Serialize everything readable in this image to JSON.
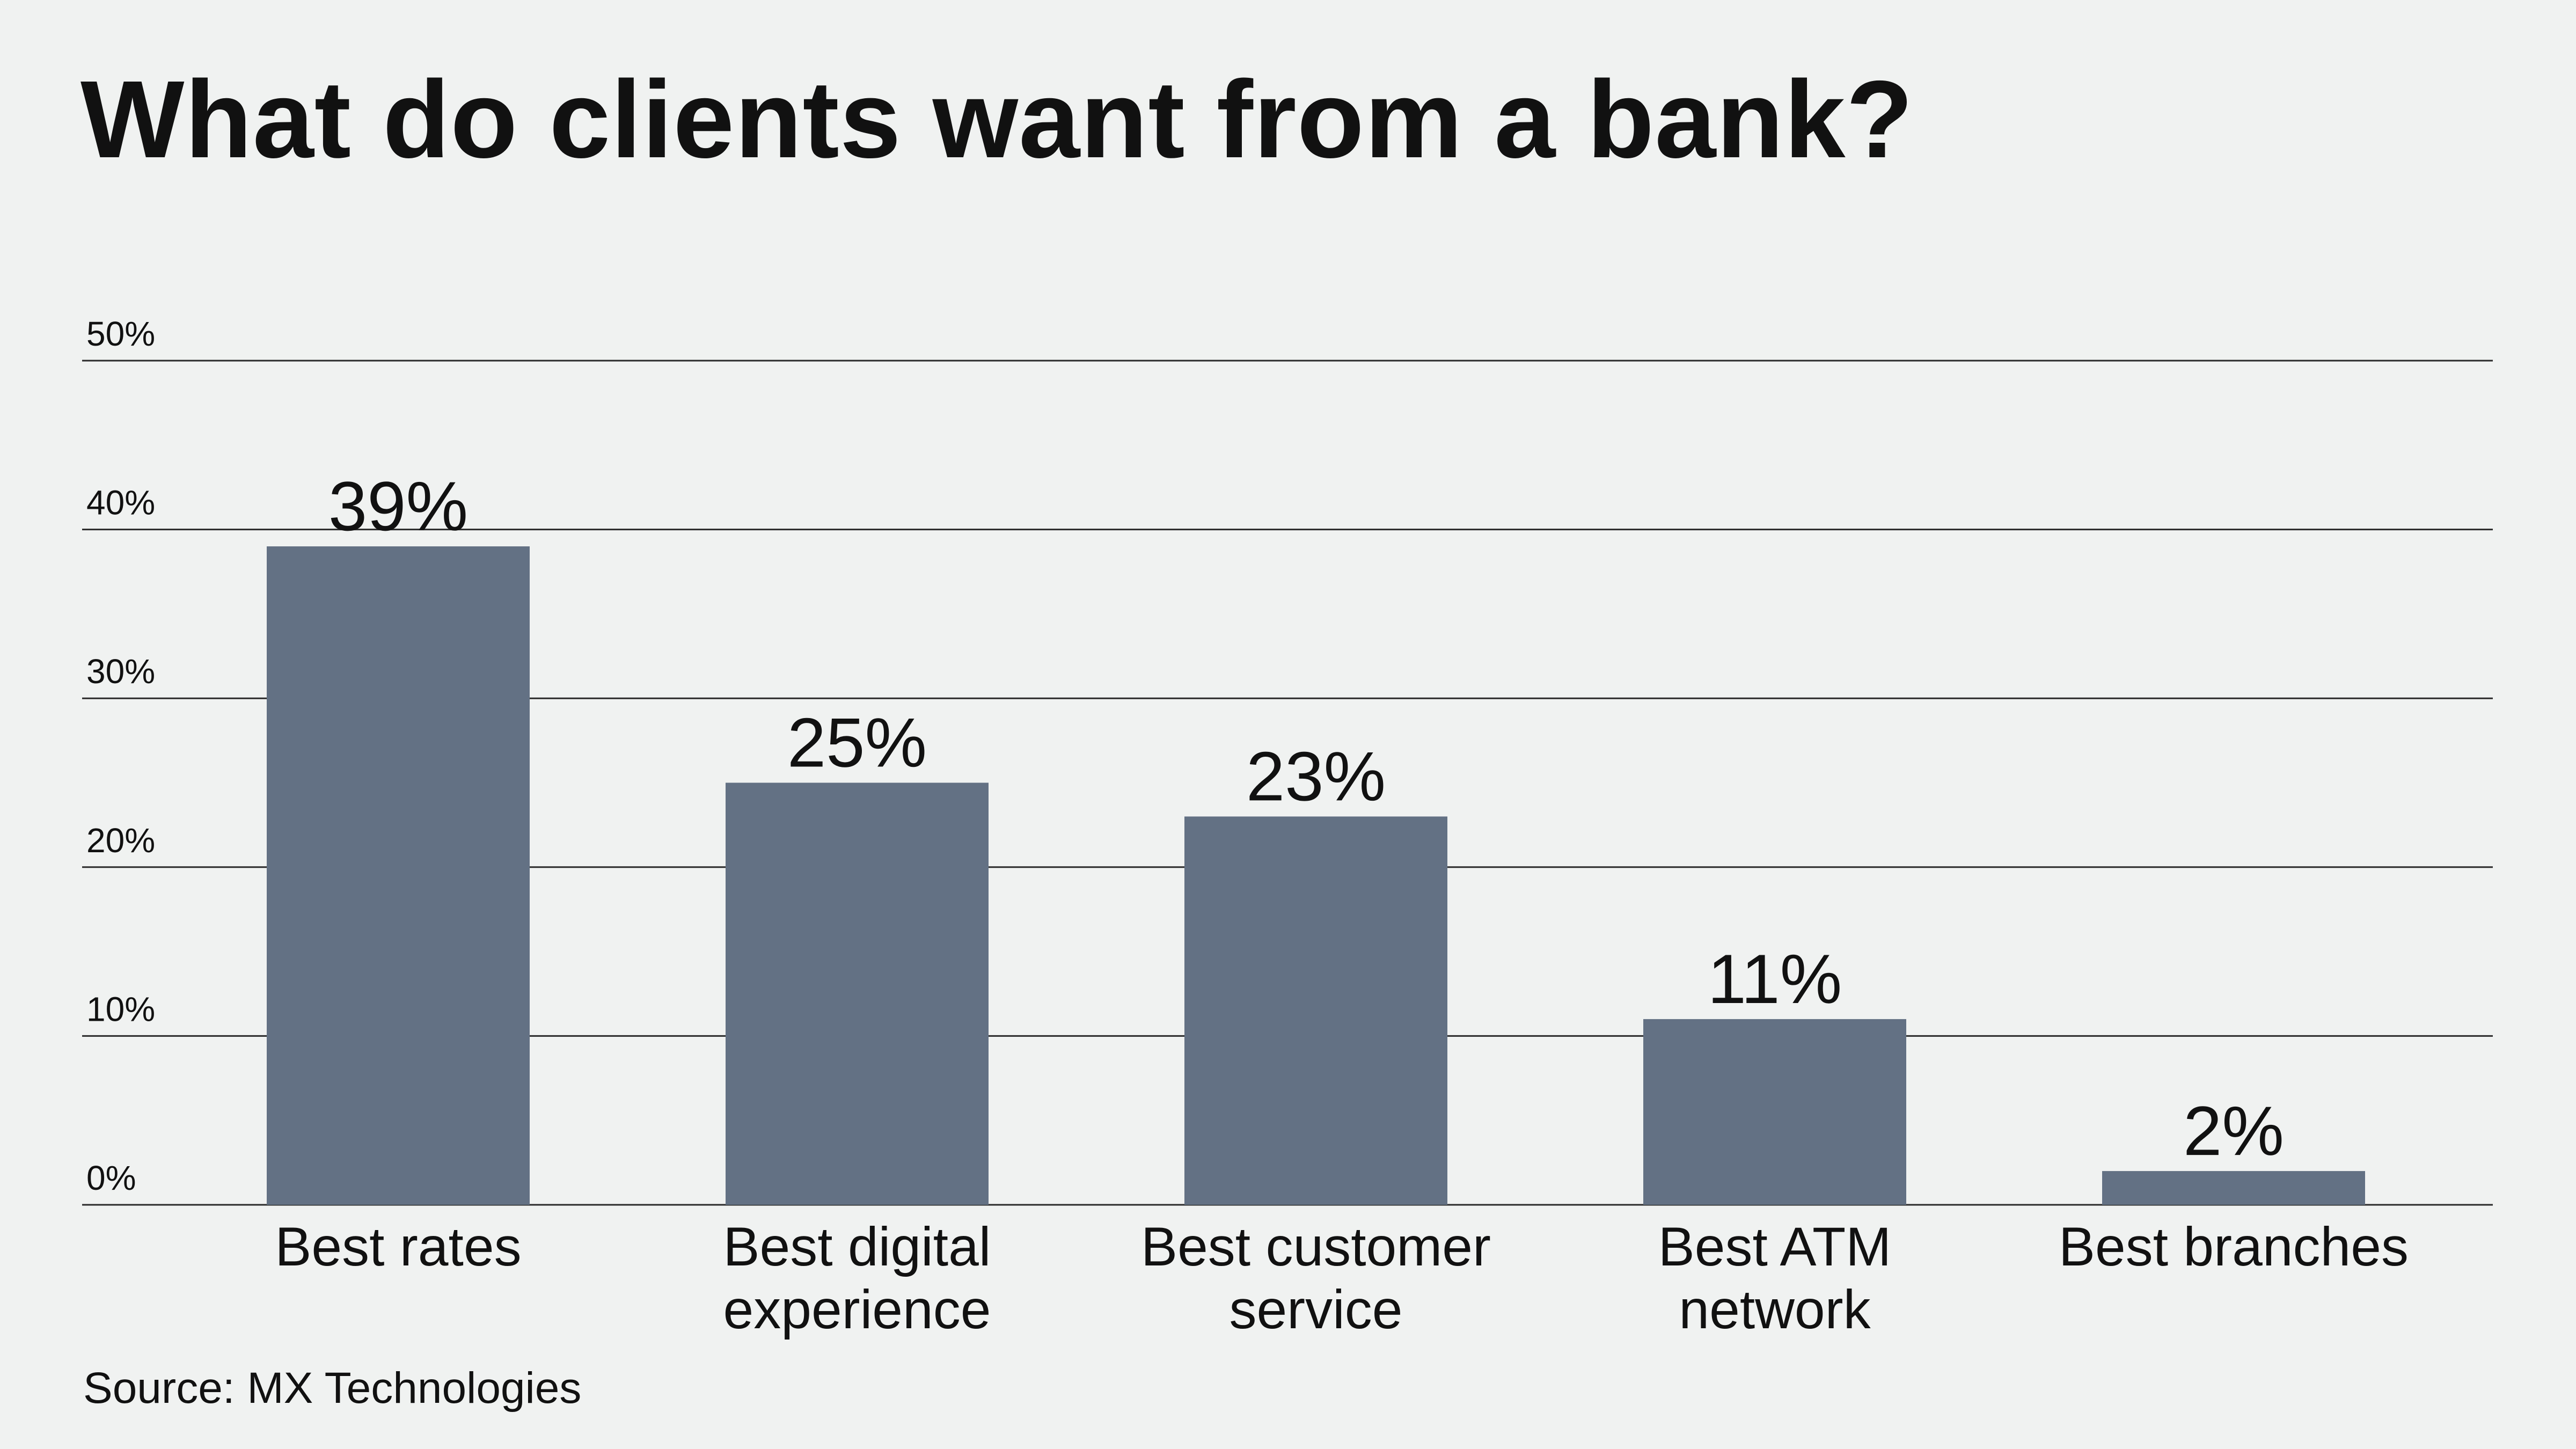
{
  "chart_data": {
    "type": "bar",
    "title": "What do clients want from a bank?",
    "categories": [
      [
        "Best rates"
      ],
      [
        "Best digital",
        "experience"
      ],
      [
        "Best customer",
        "service"
      ],
      [
        "Best ATM",
        "network"
      ],
      [
        "Best branches"
      ]
    ],
    "values": [
      39,
      25,
      23,
      11,
      2
    ],
    "value_labels": [
      "39%",
      "25%",
      "23%",
      "11%",
      "2%"
    ],
    "ylim": [
      0,
      50
    ],
    "yticks": [
      0,
      10,
      20,
      30,
      40,
      50
    ],
    "ytick_labels": [
      "0%",
      "10%",
      "20%",
      "30%",
      "40%",
      "50%"
    ],
    "xlabel": "",
    "ylabel": "",
    "grid": true,
    "legend": "none",
    "bar_color": "#637184"
  },
  "source": "Source: MX Technologies"
}
